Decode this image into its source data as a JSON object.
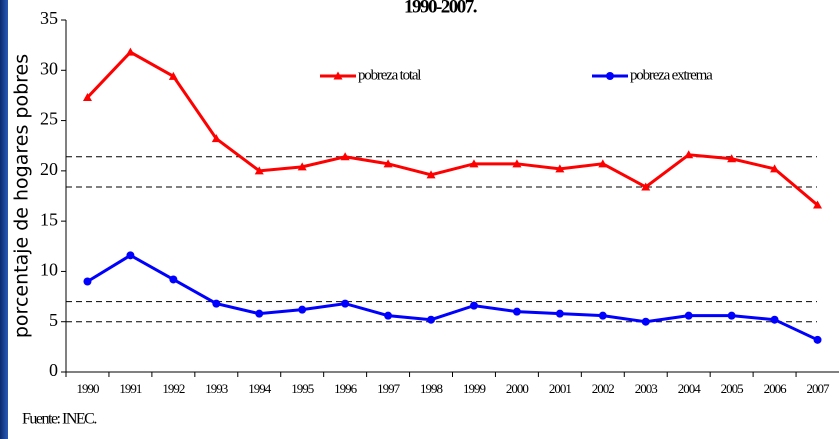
{
  "chart_data": {
    "type": "line",
    "title": "1990-2007.",
    "y_label": "porcentaje de hogares pobres",
    "source": "Fuente: INEC.",
    "categories": [
      "1990",
      "1991",
      "1992",
      "1993",
      "1994",
      "1995",
      "1996",
      "1997",
      "1998",
      "1999",
      "2000",
      "2001",
      "2002",
      "2003",
      "2004",
      "2005",
      "2006",
      "2007"
    ],
    "series": [
      {
        "name": "pobreza total",
        "color": "#ff0000",
        "values": [
          27.3,
          31.8,
          29.4,
          23.2,
          20.0,
          20.4,
          21.4,
          20.7,
          19.6,
          20.7,
          20.7,
          20.2,
          20.7,
          18.4,
          21.6,
          21.2,
          20.2,
          16.6
        ]
      },
      {
        "name": "pobreza extrema",
        "color": "#0000ff",
        "values": [
          9.0,
          11.6,
          9.2,
          6.8,
          5.8,
          6.2,
          6.8,
          5.6,
          5.2,
          6.6,
          6.0,
          5.8,
          5.6,
          5.0,
          5.6,
          5.6,
          5.2,
          3.2
        ]
      }
    ],
    "reference_lines": [
      21.4,
      18.4,
      7,
      5
    ],
    "ylim": [
      0,
      35
    ],
    "yticks": [
      0,
      5,
      10,
      15,
      20,
      25,
      30,
      35
    ]
  }
}
